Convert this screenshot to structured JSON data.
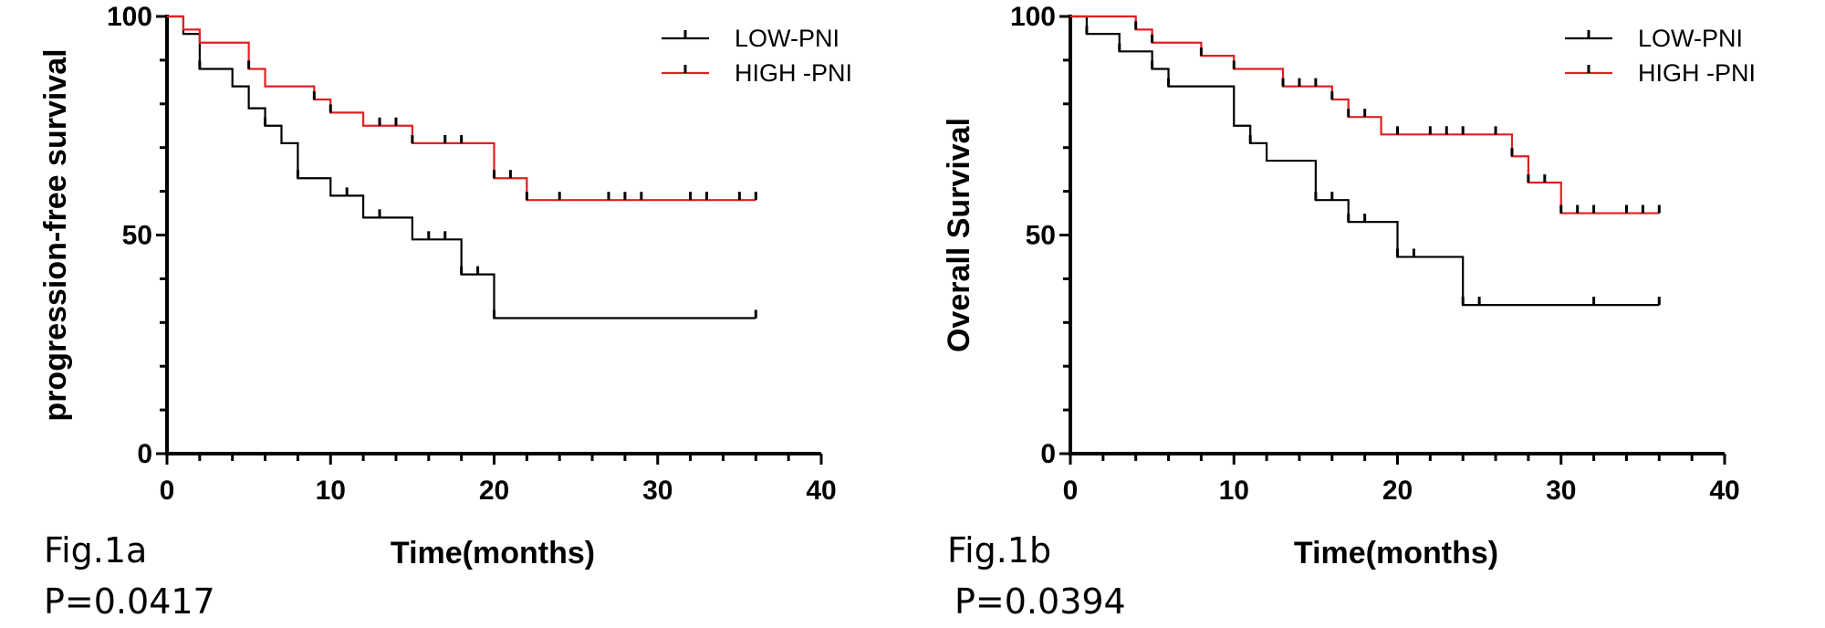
{
  "colors": {
    "low": "#000000",
    "high": "#e02020",
    "axis": "#000000"
  },
  "chart_data": [
    {
      "type": "line",
      "subtype": "kaplan-meier",
      "caption": "Fig.1a",
      "p_value": "P=0.0417",
      "ylabel": "progression-free survival",
      "xlabel": "Time(months)",
      "xlim": [
        0,
        40
      ],
      "ylim": [
        0,
        100
      ],
      "xticks": [
        "0",
        "10",
        "20",
        "30",
        "40"
      ],
      "yticks": [
        "0",
        "50",
        "100"
      ],
      "legend": [
        "LOW-PNI",
        "HIGH -PNI"
      ],
      "series": [
        {
          "name": "LOW-PNI",
          "steps": [
            [
              0,
              100
            ],
            [
              1,
              96
            ],
            [
              2,
              88
            ],
            [
              4,
              84
            ],
            [
              5,
              79
            ],
            [
              6,
              75
            ],
            [
              7,
              71
            ],
            [
              8,
              63
            ],
            [
              10,
              59
            ],
            [
              12,
              54
            ],
            [
              15,
              49
            ],
            [
              18,
              41
            ],
            [
              20,
              31
            ],
            [
              36,
              31
            ]
          ],
          "censors": [
            2,
            6,
            8,
            11,
            13,
            16,
            17,
            18,
            19,
            20,
            36
          ]
        },
        {
          "name": "HIGH -PNI",
          "steps": [
            [
              0,
              100
            ],
            [
              1,
              97
            ],
            [
              2,
              94
            ],
            [
              5,
              88
            ],
            [
              6,
              84
            ],
            [
              9,
              81
            ],
            [
              10,
              78
            ],
            [
              12,
              75
            ],
            [
              15,
              71
            ],
            [
              20,
              63
            ],
            [
              22,
              58
            ],
            [
              36,
              58
            ]
          ],
          "censors": [
            5,
            9,
            10,
            13,
            14,
            15,
            17,
            18,
            20,
            21,
            22,
            24,
            27,
            28,
            29,
            32,
            33,
            35,
            36
          ]
        }
      ]
    },
    {
      "type": "line",
      "subtype": "kaplan-meier",
      "caption": "Fig.1b",
      "p_value": "P=0.0394",
      "ylabel": "Overall Survival",
      "xlabel": "Time(months)",
      "xlim": [
        0,
        40
      ],
      "ylim": [
        0,
        100
      ],
      "xticks": [
        "0",
        "10",
        "20",
        "30",
        "40"
      ],
      "yticks": [
        "0",
        "50",
        "100"
      ],
      "legend": [
        "LOW-PNI",
        "HIGH -PNI"
      ],
      "series": [
        {
          "name": "LOW-PNI",
          "steps": [
            [
              0,
              100
            ],
            [
              1,
              96
            ],
            [
              3,
              92
            ],
            [
              5,
              88
            ],
            [
              6,
              84
            ],
            [
              10,
              75
            ],
            [
              11,
              71
            ],
            [
              12,
              67
            ],
            [
              15,
              58
            ],
            [
              17,
              53
            ],
            [
              20,
              45
            ],
            [
              24,
              34
            ],
            [
              36,
              34
            ]
          ],
          "censors": [
            1,
            3,
            5,
            6,
            11,
            15,
            16,
            17,
            18,
            20,
            21,
            24,
            25,
            32,
            36
          ]
        },
        {
          "name": "HIGH -PNI",
          "steps": [
            [
              0,
              100
            ],
            [
              4,
              97
            ],
            [
              5,
              94
            ],
            [
              8,
              91
            ],
            [
              10,
              88
            ],
            [
              13,
              84
            ],
            [
              16,
              81
            ],
            [
              17,
              77
            ],
            [
              19,
              73
            ],
            [
              27,
              68
            ],
            [
              28,
              62
            ],
            [
              30,
              55
            ],
            [
              36,
              55
            ]
          ],
          "censors": [
            4,
            5,
            8,
            10,
            13,
            14,
            15,
            16,
            17,
            18,
            20,
            22,
            23,
            24,
            26,
            27,
            28,
            29,
            30,
            31,
            32,
            34,
            35,
            36
          ]
        }
      ]
    }
  ]
}
